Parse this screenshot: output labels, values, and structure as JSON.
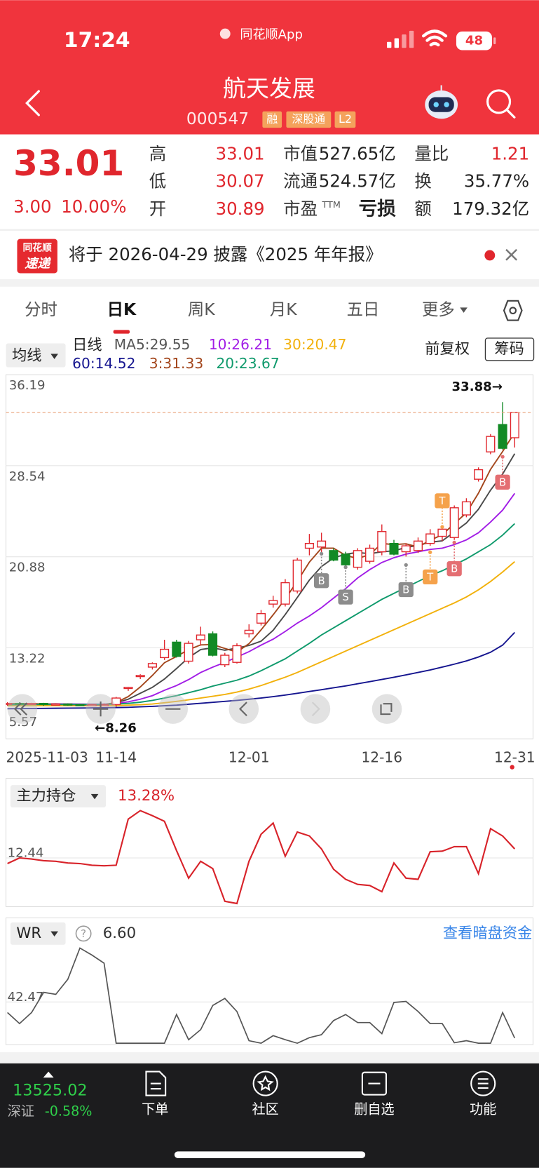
{
  "status_bar": {
    "time": "17:24",
    "app": "同花顺App",
    "battery": "48"
  },
  "header": {
    "title": "航天发展",
    "code": "000547",
    "badges": [
      "融",
      "深股通",
      "L2"
    ]
  },
  "quote": {
    "price": "33.01",
    "change": "3.00",
    "change_pct": "10.00%",
    "fields": [
      {
        "label": "高",
        "value": "33.01",
        "color": "#e0262d"
      },
      {
        "label": "市值",
        "value": "527.65亿",
        "color": "#222222"
      },
      {
        "label": "量比",
        "value": "1.21",
        "color": "#e0262d"
      },
      {
        "label": "低",
        "value": "30.07",
        "color": "#e0262d"
      },
      {
        "label": "流通",
        "value": "524.57亿",
        "color": "#222222"
      },
      {
        "label": "换",
        "value": "35.77%",
        "color": "#222222"
      },
      {
        "label": "开",
        "value": "30.89",
        "color": "#e0262d"
      },
      {
        "label": "市盈",
        "label_sup": "TTM",
        "value": "亏损",
        "color": "#222222"
      },
      {
        "label": "额",
        "value": "179.32亿",
        "color": "#222222"
      }
    ]
  },
  "notice": {
    "logo": [
      "同花顺",
      "速递"
    ],
    "text": "将于 2026-04-29 披露《2025 年年报》",
    "close": "×"
  },
  "tabs": {
    "items": [
      "分时",
      "日K",
      "周K",
      "月K",
      "五日",
      "更多"
    ],
    "active": 1
  },
  "chart_data": [
    {
      "type": "candlestick",
      "indicator_selector": "均线",
      "period_label": "日线",
      "adjust_label": "前复权",
      "chip_button": "筹码",
      "categories": [
        "2025-11-03",
        null,
        null,
        null,
        null,
        null,
        null,
        null,
        null,
        "11-14",
        null,
        null,
        null,
        null,
        null,
        null,
        null,
        null,
        null,
        null,
        "12-01",
        null,
        null,
        null,
        null,
        null,
        null,
        null,
        null,
        null,
        null,
        "12-16",
        null,
        null,
        null,
        null,
        null,
        null,
        null,
        null,
        null,
        null,
        "12-31"
      ],
      "open": [
        8.5,
        8.55,
        8.5,
        8.55,
        8.45,
        8.5,
        8.45,
        8.4,
        8.45,
        8.45,
        9.8,
        10.8,
        11.6,
        12.4,
        13.7,
        12.1,
        13.9,
        14.4,
        11.8,
        12.0,
        14.4,
        15.3,
        16.9,
        16.9,
        18.0,
        21.6,
        21.7,
        21.4,
        21.1,
        20.0,
        20.5,
        21.3,
        22.0,
        21.3,
        21.4,
        22.0,
        22.6,
        22.5,
        24.4,
        27.4,
        29.7,
        32.0,
        30.89
      ],
      "high": [
        8.65,
        8.65,
        8.6,
        8.6,
        8.55,
        8.55,
        8.5,
        8.5,
        8.55,
        9.1,
        9.95,
        11.0,
        12.0,
        13.9,
        13.9,
        13.8,
        15.0,
        14.6,
        12.8,
        13.6,
        15.2,
        16.4,
        17.6,
        19.0,
        20.8,
        22.8,
        22.9,
        21.6,
        21.3,
        21.6,
        21.9,
        23.6,
        22.3,
        22.0,
        22.5,
        23.2,
        23.5,
        25.2,
        25.8,
        28.4,
        31.2,
        33.88,
        33.01
      ],
      "low": [
        8.35,
        8.45,
        8.45,
        8.35,
        8.4,
        8.35,
        8.35,
        8.35,
        8.35,
        8.26,
        9.6,
        10.6,
        11.4,
        12.2,
        12.4,
        11.9,
        13.4,
        12.5,
        11.6,
        11.9,
        14.1,
        15.1,
        16.6,
        16.7,
        17.8,
        21.0,
        21.1,
        20.5,
        20.1,
        19.8,
        20.3,
        21.0,
        21.0,
        20.9,
        21.2,
        21.8,
        22.2,
        22.3,
        24.2,
        27.2,
        29.5,
        29.9,
        30.07
      ],
      "close": [
        8.55,
        8.5,
        8.55,
        8.45,
        8.5,
        8.45,
        8.4,
        8.45,
        8.45,
        9.0,
        9.9,
        10.9,
        11.9,
        13.1,
        12.5,
        13.6,
        14.3,
        12.6,
        12.6,
        13.4,
        14.7,
        16.1,
        17.2,
        18.7,
        20.6,
        22.0,
        22.2,
        20.6,
        20.2,
        21.4,
        21.6,
        23.0,
        21.1,
        21.8,
        22.2,
        22.8,
        23.2,
        25.0,
        25.5,
        28.2,
        31.0,
        30.0,
        33.01
      ],
      "up_color": "#e0262d",
      "down_color": "#128a25",
      "ylim": [
        5.57,
        36.19
      ],
      "yticks": [
        36.19,
        28.54,
        20.88,
        13.22,
        5.57
      ],
      "grid": true,
      "series": [
        {
          "name": "MA5:29.55",
          "color": "#4a4a4a",
          "values": [
            8.5,
            8.52,
            8.52,
            8.5,
            8.51,
            8.49,
            8.47,
            8.47,
            8.45,
            8.6,
            8.9,
            9.4,
            9.9,
            10.6,
            11.48,
            12.4,
            13.08,
            13.22,
            13.02,
            13.2,
            13.42,
            13.78,
            14.7,
            16.02,
            17.46,
            18.92,
            20.06,
            20.78,
            21.1,
            21.24,
            21.14,
            21.3,
            21.38,
            21.66,
            21.84,
            22.1,
            22.22,
            22.96,
            23.72,
            24.88,
            26.48,
            27.84,
            29.55
          ]
        },
        {
          "name": "10:26.21",
          "color": "#a21ee6",
          "values": [
            8.48,
            8.49,
            8.5,
            8.5,
            8.5,
            8.5,
            8.49,
            8.48,
            8.48,
            8.53,
            8.68,
            8.9,
            9.2,
            9.65,
            10.05,
            10.55,
            11.15,
            11.6,
            12.0,
            12.45,
            12.9,
            13.45,
            13.95,
            14.6,
            15.3,
            15.9,
            16.6,
            17.4,
            18.2,
            19.1,
            19.8,
            20.4,
            20.8,
            21.1,
            21.3,
            21.5,
            21.6,
            21.9,
            22.3,
            22.9,
            23.8,
            24.8,
            26.21
          ]
        },
        {
          "name": "30:20.47",
          "color": "#f2b10c",
          "values": [
            8.35,
            8.35,
            8.35,
            8.36,
            8.36,
            8.36,
            8.36,
            8.36,
            8.36,
            8.37,
            8.4,
            8.44,
            8.5,
            8.6,
            8.72,
            8.85,
            9.0,
            9.15,
            9.3,
            9.5,
            9.75,
            10.05,
            10.4,
            10.75,
            11.15,
            11.6,
            12.05,
            12.5,
            12.95,
            13.4,
            13.85,
            14.3,
            14.75,
            15.2,
            15.65,
            16.1,
            16.55,
            17.0,
            17.5,
            18.1,
            18.8,
            19.6,
            20.47
          ]
        },
        {
          "name": "60:14.52",
          "color": "#15158f",
          "values": [
            8.1,
            8.11,
            8.12,
            8.13,
            8.14,
            8.15,
            8.16,
            8.17,
            8.18,
            8.2,
            8.22,
            8.26,
            8.3,
            8.35,
            8.4,
            8.48,
            8.56,
            8.64,
            8.72,
            8.8,
            8.9,
            9.0,
            9.12,
            9.25,
            9.4,
            9.55,
            9.7,
            9.86,
            10.02,
            10.2,
            10.38,
            10.56,
            10.75,
            10.95,
            11.15,
            11.36,
            11.6,
            11.85,
            12.12,
            12.45,
            12.85,
            13.45,
            14.52
          ]
        },
        {
          "name": "3:31.33",
          "color": "#a3461c",
          "values": [
            8.53,
            8.52,
            8.53,
            8.5,
            8.48,
            8.45,
            8.43,
            8.42,
            8.43,
            8.63,
            9.12,
            9.93,
            10.9,
            11.97,
            12.5,
            13.07,
            13.47,
            13.5,
            13.17,
            12.87,
            13.57,
            14.73,
            16.0,
            17.33,
            18.83,
            20.43,
            21.6,
            21.6,
            21.0,
            20.73,
            21.07,
            22.0,
            21.9,
            21.97,
            21.7,
            22.27,
            22.73,
            23.67,
            24.57,
            26.23,
            28.23,
            29.73,
            31.33
          ]
        },
        {
          "name": "20:23.67",
          "color": "#0f9a6c",
          "values": [
            8.45,
            8.45,
            8.46,
            8.46,
            8.46,
            8.46,
            8.46,
            8.46,
            8.46,
            8.5,
            8.55,
            8.65,
            8.8,
            9.0,
            9.2,
            9.45,
            9.7,
            10.0,
            10.25,
            10.5,
            10.85,
            11.3,
            11.8,
            12.3,
            12.95,
            13.6,
            14.3,
            14.9,
            15.5,
            16.1,
            16.7,
            17.3,
            17.8,
            18.3,
            18.8,
            19.3,
            19.7,
            20.2,
            20.7,
            21.3,
            21.9,
            22.7,
            23.67
          ]
        }
      ],
      "annotations": [
        {
          "text": "33.88→"
        },
        {
          "text": "←8.26"
        }
      ],
      "signals": [
        {
          "label": "B",
          "color": "#8c8c8c"
        },
        {
          "label": "S",
          "color": "#8c8c8c"
        },
        {
          "label": "B",
          "color": "#8c8c8c"
        },
        {
          "label": "T",
          "color": "#f5a24b"
        },
        {
          "label": "T",
          "color": "#f5a24b"
        },
        {
          "label": "B",
          "color": "#e46e72"
        },
        {
          "label": "B",
          "color": "#e46e72"
        }
      ]
    },
    {
      "type": "line",
      "indicator_selector": "主力持仓",
      "value_label": "13.28%",
      "ylim": [
        11.6,
        13.8
      ],
      "yticks": [
        12.44
      ],
      "grid": true,
      "series": [
        {
          "color": "#d8232a",
          "values": [
            12.34,
            12.44,
            12.42,
            12.39,
            12.38,
            12.35,
            12.34,
            12.31,
            12.3,
            12.31,
            13.13,
            13.28,
            13.19,
            13.09,
            12.57,
            12.08,
            12.38,
            12.25,
            11.67,
            11.63,
            12.38,
            12.86,
            13.06,
            12.47,
            12.9,
            12.83,
            12.6,
            12.24,
            12.06,
            11.97,
            11.95,
            11.84,
            12.35,
            12.08,
            12.06,
            12.55,
            12.56,
            12.64,
            12.64,
            12.16,
            12.96,
            12.83,
            12.6
          ]
        }
      ]
    },
    {
      "type": "line",
      "indicator_selector": "WR",
      "help": "?",
      "value_label": "6.60",
      "link": "查看暗盘资金",
      "ylim": [
        0,
        100
      ],
      "yticks": [
        42.47
      ],
      "grid": true,
      "series": [
        {
          "color": "#555555",
          "values": [
            32,
            21,
            32,
            52,
            50,
            65,
            96,
            89,
            81,
            1.5,
            1.5,
            1.5,
            1.5,
            1.5,
            30,
            5,
            15,
            39,
            46,
            33,
            4,
            1.5,
            9,
            5,
            1.5,
            7,
            10,
            24,
            30,
            22,
            22,
            11,
            42,
            43,
            33,
            21,
            21,
            2,
            4,
            1.5,
            1.5,
            32,
            6.6
          ]
        }
      ]
    }
  ],
  "bottom_bar": {
    "index_value": "13525.02",
    "index_name": "深证",
    "index_change": "-0.58%",
    "nav": [
      "下单",
      "社区",
      "删自选",
      "功能"
    ]
  }
}
